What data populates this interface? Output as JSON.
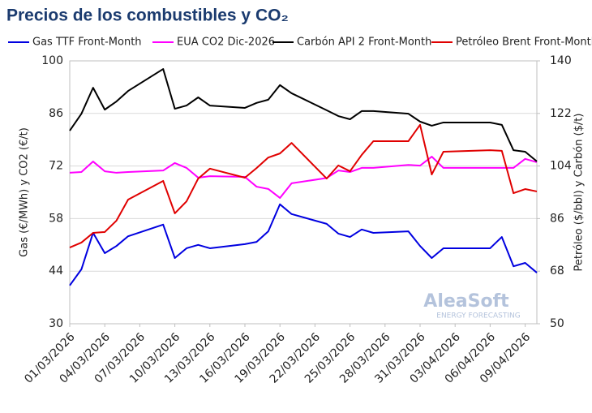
{
  "chart_data": {
    "type": "line",
    "title": "Precios de los combustibles y CO₂",
    "y_label": "Gas (€/MWh) y CO2 (€/t)",
    "y2_label": "Petróleo ($/bbl) y Carbón ($/t)",
    "annotations": [
      "AleaSoft",
      "ENERGY FORECASTING"
    ],
    "x": [
      "01/03/2026",
      "02/03/2026",
      "03/03/2026",
      "04/03/2026",
      "05/03/2026",
      "06/03/2026",
      "09/03/2026",
      "10/03/2026",
      "11/03/2026",
      "12/03/2026",
      "13/03/2026",
      "16/03/2026",
      "17/03/2026",
      "18/03/2026",
      "19/03/2026",
      "20/03/2026",
      "23/03/2026",
      "24/03/2026",
      "25/03/2026",
      "26/03/2026",
      "27/03/2026",
      "30/03/2026",
      "31/03/2026",
      "01/04/2026",
      "02/04/2026",
      "06/04/2026",
      "07/04/2026",
      "08/04/2026",
      "09/04/2026",
      "10/04/2026"
    ],
    "xlim": [
      "01/03/2026",
      "10/04/2026"
    ],
    "xticks": [
      "01/03/2026",
      "04/03/2026",
      "07/03/2026",
      "10/03/2026",
      "13/03/2026",
      "16/03/2026",
      "19/03/2026",
      "22/03/2026",
      "25/03/2026",
      "28/03/2026",
      "31/03/2026",
      "03/04/2026",
      "06/04/2026",
      "09/04/2026"
    ],
    "ylim": [
      30,
      100
    ],
    "yticks": [
      30,
      44,
      58,
      72,
      86,
      100
    ],
    "y2lim": [
      50,
      140
    ],
    "y2ticks": [
      50,
      68,
      86,
      104,
      122,
      140
    ],
    "grid": true,
    "legend": "top",
    "series": [
      {
        "name": "Gas TTF Front-Month",
        "color": "#0000e0",
        "axis": "y",
        "values": [
          40.2,
          44.5,
          54.2,
          48.8,
          50.7,
          53.3,
          56.4,
          47.5,
          50.1,
          51.0,
          50.1,
          51.2,
          51.8,
          54.6,
          61.8,
          59.2,
          56.6,
          54.0,
          53.1,
          55.1,
          54.2,
          54.6,
          50.7,
          47.5,
          50.1,
          50.1,
          53.1,
          45.3,
          46.2,
          43.6
        ]
      },
      {
        "name": "EUA CO2 Dic-2026",
        "color": "#ff00ff",
        "axis": "y",
        "values": [
          70.2,
          70.4,
          73.2,
          70.6,
          70.2,
          70.4,
          70.8,
          72.8,
          71.5,
          68.9,
          69.3,
          69.1,
          66.5,
          65.9,
          63.5,
          67.4,
          68.8,
          70.8,
          70.4,
          71.5,
          71.5,
          72.3,
          72.1,
          74.5,
          71.5,
          71.5,
          71.5,
          71.5,
          73.9,
          73.0
        ]
      },
      {
        "name": "Carbón API 2 Front-Month",
        "color": "#000000",
        "axis": "y2",
        "values": [
          116.1,
          121.9,
          130.8,
          123.3,
          126.1,
          129.7,
          137.2,
          123.6,
          124.7,
          127.5,
          124.7,
          123.9,
          125.6,
          126.7,
          131.7,
          128.9,
          123.1,
          121.1,
          120.0,
          122.8,
          122.8,
          121.9,
          119.2,
          117.8,
          118.9,
          118.9,
          118.1,
          109.4,
          108.9,
          105.6
        ]
      },
      {
        "name": "Petróleo Brent Front-Month",
        "color": "#e00000",
        "axis": "y2",
        "values": [
          76.1,
          77.8,
          81.1,
          81.4,
          85.3,
          92.5,
          98.9,
          87.8,
          91.9,
          99.7,
          103.1,
          100.0,
          103.3,
          106.9,
          108.3,
          111.9,
          99.7,
          104.2,
          102.2,
          107.8,
          112.5,
          112.5,
          118.1,
          101.1,
          108.9,
          109.4,
          109.2,
          94.7,
          96.1,
          95.3
        ]
      }
    ]
  }
}
